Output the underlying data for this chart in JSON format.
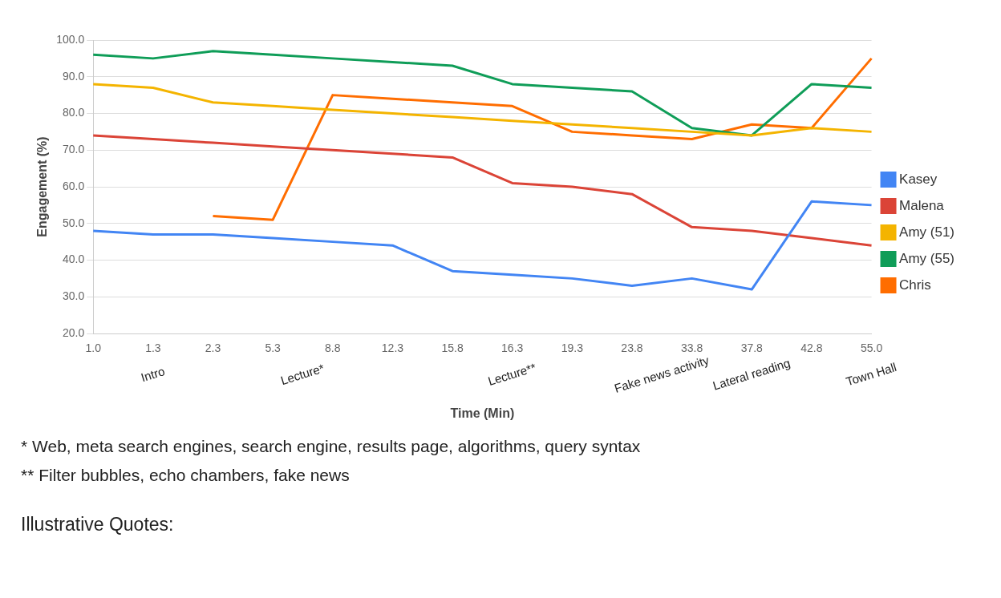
{
  "chart_data": {
    "type": "line",
    "xlabel": "Time (Min)",
    "ylabel": "Engagement (%)",
    "categories": [
      "1.0",
      "1.3",
      "2.3",
      "5.3",
      "8.8",
      "12.3",
      "15.8",
      "16.3",
      "19.3",
      "23.8",
      "33.8",
      "37.8",
      "42.8",
      "55.0"
    ],
    "series": [
      {
        "name": "Kasey",
        "color": "#4285f4",
        "values": [
          48,
          47,
          47,
          46,
          45,
          44,
          37,
          36,
          35,
          33,
          35,
          32,
          56,
          55
        ]
      },
      {
        "name": "Malena",
        "color": "#db4437",
        "values": [
          74,
          73,
          72,
          71,
          70,
          69,
          68,
          61,
          60,
          58,
          49,
          48,
          46,
          44
        ]
      },
      {
        "name": "Amy (51)",
        "color": "#f4b400",
        "values": [
          88,
          87,
          83,
          82,
          81,
          80,
          79,
          78,
          77,
          76,
          75,
          74,
          76,
          75
        ]
      },
      {
        "name": "Amy (55)",
        "color": "#0f9d58",
        "values": [
          96,
          95,
          97,
          96,
          95,
          94,
          93,
          88,
          87,
          86,
          76,
          74,
          88,
          87
        ]
      },
      {
        "name": "Chris",
        "color": "#ff6d00",
        "values": [
          null,
          null,
          52,
          51,
          85,
          84,
          83,
          82,
          75,
          74,
          73,
          77,
          76,
          95
        ]
      }
    ],
    "ylim": [
      20,
      100
    ],
    "yticks": [
      {
        "value": 20,
        "label": "20.0"
      },
      {
        "value": 30,
        "label": "30.0"
      },
      {
        "value": 40,
        "label": "40.0"
      },
      {
        "value": 50,
        "label": "50.0"
      },
      {
        "value": 60,
        "label": "60.0"
      },
      {
        "value": 70,
        "label": "70.0"
      },
      {
        "value": 80,
        "label": "80.0"
      },
      {
        "value": 90,
        "label": "90.0"
      },
      {
        "value": 100,
        "label": "100.0"
      }
    ],
    "grid": "y",
    "legend": "right",
    "marker": "none",
    "line_style": "solid",
    "annotations": [
      "Intro",
      "Lecture*",
      "Lecture**",
      "Fake news activity",
      "Lateral reading",
      "Town Hall",
      "* Web, meta search engines, search engine, results page, algorithms, query syntax",
      "** Filter bubbles, echo chambers, fake news",
      "Illustrative Quotes:"
    ]
  }
}
